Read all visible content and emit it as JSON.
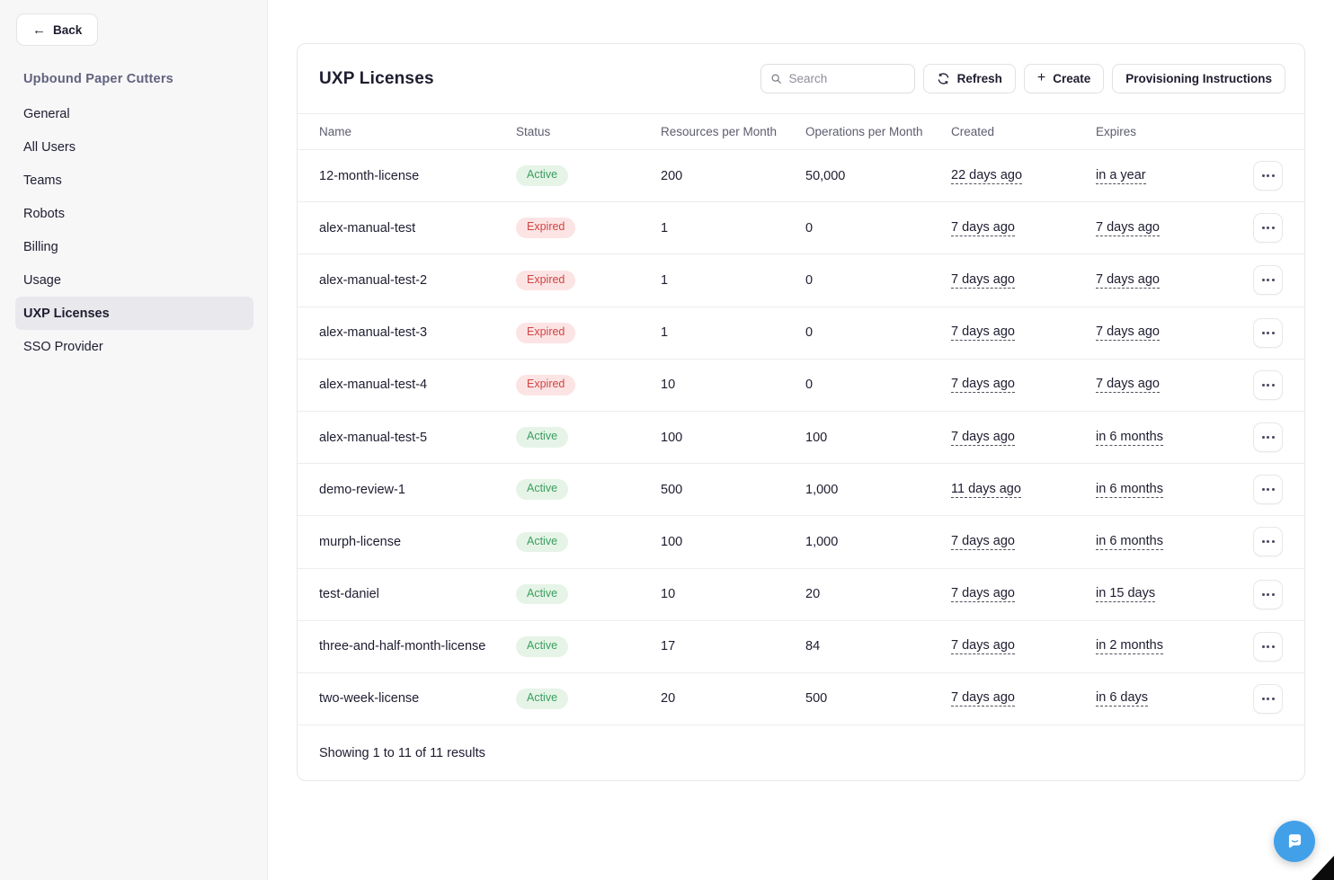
{
  "sidebar": {
    "back_label": "Back",
    "org_name": "Upbound Paper Cutters",
    "items": [
      {
        "label": "General",
        "active": false
      },
      {
        "label": "All Users",
        "active": false
      },
      {
        "label": "Teams",
        "active": false
      },
      {
        "label": "Robots",
        "active": false
      },
      {
        "label": "Billing",
        "active": false
      },
      {
        "label": "Usage",
        "active": false
      },
      {
        "label": "UXP Licenses",
        "active": true
      },
      {
        "label": "SSO Provider",
        "active": false
      }
    ]
  },
  "panel": {
    "title": "UXP Licenses",
    "search_placeholder": "Search",
    "refresh_label": "Refresh",
    "create_label": "Create",
    "provisioning_label": "Provisioning Instructions",
    "footer_text": "Showing 1 to 11 of 11 results"
  },
  "table": {
    "columns": [
      "Name",
      "Status",
      "Resources per Month",
      "Operations per Month",
      "Created",
      "Expires"
    ],
    "rows": [
      {
        "name": "12-month-license",
        "status": "Active",
        "resources": "200",
        "operations": "50,000",
        "created": "22 days ago",
        "expires": "in a year"
      },
      {
        "name": "alex-manual-test",
        "status": "Expired",
        "resources": "1",
        "operations": "0",
        "created": "7 days ago",
        "expires": "7 days ago"
      },
      {
        "name": "alex-manual-test-2",
        "status": "Expired",
        "resources": "1",
        "operations": "0",
        "created": "7 days ago",
        "expires": "7 days ago"
      },
      {
        "name": "alex-manual-test-3",
        "status": "Expired",
        "resources": "1",
        "operations": "0",
        "created": "7 days ago",
        "expires": "7 days ago"
      },
      {
        "name": "alex-manual-test-4",
        "status": "Expired",
        "resources": "10",
        "operations": "0",
        "created": "7 days ago",
        "expires": "7 days ago"
      },
      {
        "name": "alex-manual-test-5",
        "status": "Active",
        "resources": "100",
        "operations": "100",
        "created": "7 days ago",
        "expires": "in 6 months"
      },
      {
        "name": "demo-review-1",
        "status": "Active",
        "resources": "500",
        "operations": "1,000",
        "created": "11 days ago",
        "expires": "in 6 months"
      },
      {
        "name": "murph-license",
        "status": "Active",
        "resources": "100",
        "operations": "1,000",
        "created": "7 days ago",
        "expires": "in 6 months"
      },
      {
        "name": "test-daniel",
        "status": "Active",
        "resources": "10",
        "operations": "20",
        "created": "7 days ago",
        "expires": "in 15 days"
      },
      {
        "name": "three-and-half-month-license",
        "status": "Active",
        "resources": "17",
        "operations": "84",
        "created": "7 days ago",
        "expires": "in 2 months"
      },
      {
        "name": "two-week-license",
        "status": "Active",
        "resources": "20",
        "operations": "500",
        "created": "7 days ago",
        "expires": "in 6 days"
      }
    ]
  },
  "icons": {
    "back": "arrow-left",
    "search": "magnifier",
    "refresh": "circular-sync-arrows",
    "create": "plus",
    "row_actions": "horizontal-ellipsis",
    "chat": "speech-bubble-with-smile",
    "corner": "cursor-pointer-tip"
  },
  "colors": {
    "status_active_bg": "#e5f4e7",
    "status_active_text": "#3b9e5f",
    "status_expired_bg": "#fce4e4",
    "status_expired_text": "#d24444",
    "org_title": "#62627e",
    "chat_launcher": "#42a0e8",
    "sidebar_bg": "#f7f7f8",
    "selected_item_bg": "#e9e9ed"
  }
}
